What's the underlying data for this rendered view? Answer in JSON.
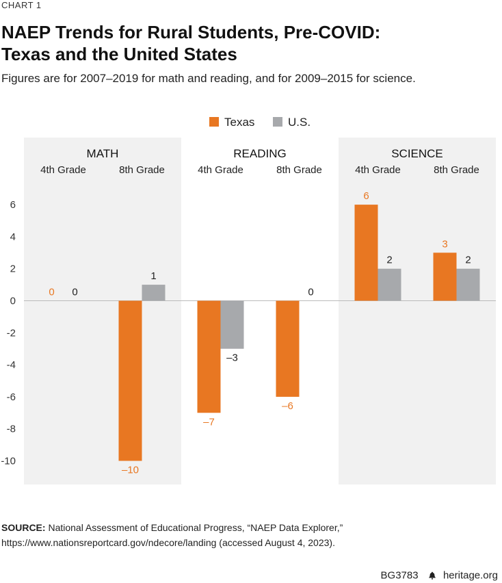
{
  "header": {
    "chart_label": "CHART 1",
    "title_line1": "NAEP Trends for Rural Students, Pre-COVID:",
    "title_line2": "Texas and the United States",
    "subtitle": "Figures are for 2007–2019 for math and reading, and for 2009–2015 for science."
  },
  "colors": {
    "texas": "#E87722",
    "us": "#A7A9AC",
    "panel": "#F1F1F1",
    "zero_line": "#BBBBBB"
  },
  "chart_data": {
    "type": "bar",
    "title": "NAEP Trends for Rural Students, Pre-COVID: Texas and the United States",
    "legend": {
      "placement": "top-center",
      "entries": [
        "Texas",
        "U.S."
      ]
    },
    "ylim": [
      -10,
      6
    ],
    "yticks": [
      6,
      4,
      2,
      0,
      -2,
      -4,
      -6,
      -8,
      -10
    ],
    "ytick_labels": [
      "6",
      "4",
      "2",
      "0",
      "-2",
      "-4",
      "-6",
      "-8",
      "-10"
    ],
    "groups": [
      {
        "subject": "MATH",
        "grades": [
          "4th Grade",
          "8th Grade"
        ],
        "shaded": true
      },
      {
        "subject": "READING",
        "grades": [
          "4th Grade",
          "8th Grade"
        ],
        "shaded": false
      },
      {
        "subject": "SCIENCE",
        "grades": [
          "4th Grade",
          "8th Grade"
        ],
        "shaded": true
      }
    ],
    "categories": [
      "Math 4th Grade",
      "Math 8th Grade",
      "Reading 4th Grade",
      "Reading 8th Grade",
      "Science 4th Grade",
      "Science 8th Grade"
    ],
    "series": [
      {
        "name": "Texas",
        "values": [
          0,
          -10,
          -7,
          -6,
          6,
          3
        ],
        "labels": [
          "0",
          "–10",
          "–7",
          "–6",
          "6",
          "3"
        ]
      },
      {
        "name": "U.S.",
        "values": [
          0,
          1,
          -3,
          0,
          2,
          2
        ],
        "labels": [
          "0",
          "1",
          "–3",
          "0",
          "2",
          "2"
        ]
      }
    ]
  },
  "source": {
    "label": "SOURCE:",
    "text": "National Assessment of Educational Progress, “NAEP Data Explorer,” https://www.nationsreportcard.gov/ndecore/landing (accessed August 4, 2023)."
  },
  "footer": {
    "code": "BG3783",
    "site": "heritage.org",
    "logo_icon": "liberty-bell-icon"
  }
}
